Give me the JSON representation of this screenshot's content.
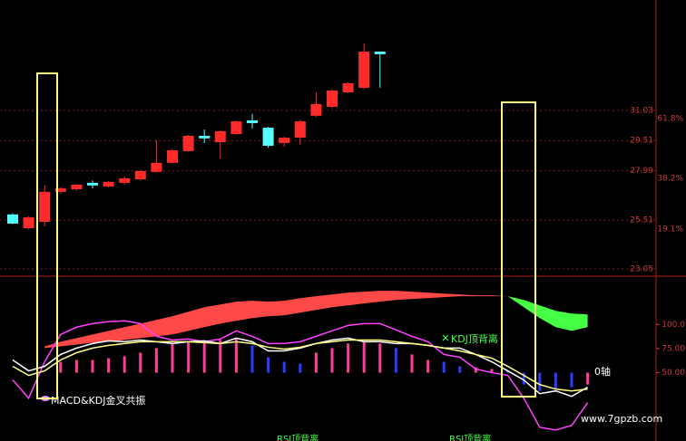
{
  "chart_data": [
    {
      "type": "candlestick",
      "open": [
        25.79,
        25.1,
        25.42,
        26.93,
        27.06,
        27.38,
        27.2,
        27.38,
        27.56,
        27.93,
        28.39,
        28.98,
        29.75,
        29.43,
        29.84,
        30.53,
        30.16,
        29.39,
        29.66,
        30.76,
        31.21,
        31.94,
        32.17,
        33.99
      ],
      "high": [
        25.85,
        25.7,
        27.25,
        27.15,
        27.33,
        27.5,
        27.47,
        27.7,
        28.02,
        29.53,
        29.1,
        29.8,
        30.07,
        30.03,
        30.52,
        30.85,
        30.2,
        29.7,
        30.55,
        31.94,
        32.1,
        32.45,
        34.4,
        34.0
      ],
      "low": [
        25.3,
        25.05,
        25.19,
        26.85,
        27.0,
        27.1,
        27.15,
        27.3,
        27.5,
        27.9,
        28.35,
        28.95,
        29.39,
        28.61,
        29.8,
        30.12,
        29.15,
        29.2,
        29.3,
        30.7,
        31.15,
        31.9,
        32.1,
        32.17
      ],
      "close": [
        25.33,
        25.65,
        26.93,
        27.11,
        27.29,
        27.25,
        27.43,
        27.61,
        27.97,
        28.39,
        29.02,
        29.75,
        29.62,
        29.98,
        30.48,
        30.39,
        29.25,
        29.66,
        30.48,
        31.35,
        32.03,
        32.4,
        33.99,
        33.86
      ],
      "up_color": "#ff2a2a",
      "down_color": "#54ffff",
      "ylim": [
        22.68,
        36.59
      ],
      "yticks": [
        31.03,
        29.51,
        27.99,
        25.51,
        23.05
      ],
      "fib_labels": [
        {
          "value": 30.62,
          "label": "61.8%"
        },
        {
          "value": 27.61,
          "label": "38.2%"
        },
        {
          "value": 25.06,
          "label": "19.1%"
        }
      ],
      "axis_color": "#c83c3c",
      "grid": true
    },
    {
      "type": "indicator",
      "ylim": [
        -20.8,
        147.2
      ],
      "yticks": [
        {
          "value": 100,
          "label": "100.0"
        },
        {
          "value": 75,
          "label": "75.00"
        },
        {
          "value": 50,
          "label": "50.00"
        }
      ],
      "lines": [
        {
          "color": "#ff40ff",
          "values": [
            42.5,
            23.6,
            61.3,
            89.6,
            97.2,
            100.9,
            102.8,
            103.8,
            100.9,
            87.7,
            83.9,
            84.9,
            82.1,
            84.9,
            93.4,
            87.7,
            80.2,
            80.2,
            82.1,
            87.7,
            93.4,
            99.0,
            100.9,
            100.9,
            94.3,
            87.7,
            82.1,
            68.9,
            66.0,
            53.8,
            50.0,
            47.2,
            23.6,
            -6.6,
            -9.4,
            -4.7,
            18.9
          ]
        },
        {
          "color": "#ffffff",
          "values": [
            63.2,
            51.9,
            56.6,
            68.9,
            75.5,
            80.2,
            83.0,
            82.1,
            83.9,
            82.1,
            80.2,
            82.1,
            83.0,
            80.2,
            85.8,
            82.1,
            72.6,
            72.6,
            75.5,
            80.2,
            83.9,
            85.8,
            82.1,
            82.1,
            80.2,
            80.2,
            78.3,
            75.5,
            75.5,
            68.9,
            61.3,
            51.9,
            42.5,
            28.3,
            31.1,
            25.5,
            34.9
          ]
        },
        {
          "color": "#ffff80",
          "values": [
            56.6,
            47.2,
            51.9,
            63.2,
            70.7,
            75.5,
            78.3,
            80.2,
            82.1,
            82.1,
            82.1,
            82.1,
            81.1,
            80.2,
            82.1,
            80.2,
            76.4,
            74.5,
            76.4,
            80.2,
            82.1,
            83.9,
            83.9,
            83.9,
            82.1,
            80.2,
            78.3,
            75.5,
            72.6,
            68.9,
            65.1,
            56.6,
            47.2,
            37.7,
            33.0,
            31.1,
            33.0
          ]
        }
      ],
      "histogram": {
        "values": [
          null,
          null,
          null,
          61.3,
          63.2,
          63.2,
          65.1,
          67.0,
          70.7,
          75.5,
          80.2,
          82.1,
          82.1,
          83.9,
          85.8,
          78.3,
          66.0,
          61.3,
          59.4,
          70.7,
          75.5,
          80.2,
          82.1,
          80.2,
          75.5,
          68.9,
          63.2,
          61.3,
          56.6,
          55.7,
          53.8,
          51.9,
          37.7,
          31.1,
          33.0,
          34.9,
          37.7
        ],
        "colors": [
          null,
          null,
          null,
          "#ff3c9a",
          "#ff3c9a",
          "#ff3c9a",
          "#ff3c9a",
          "#ff3c9a",
          "#ff3c9a",
          "#ff3c9a",
          "#ff3c9a",
          "#ff3c9a",
          "#ff3c9a",
          "#ff3c9a",
          "#ff3c9a",
          "#2a3cff",
          "#2a3cff",
          "#2a3cff",
          "#2a3cff",
          "#ff3c9a",
          "#ff3c9a",
          "#ff3c9a",
          "#ff3c9a",
          "#ff3c9a",
          "#2a3cff",
          "#ff3c9a",
          "#ff3c9a",
          "#2a3cff",
          "#2a3cff",
          "#ff3c9a",
          "#ff3c9a",
          "#2a3cff",
          "#2a3cff",
          "#2a3cff",
          "#2a3cff",
          "#2a3cff",
          "#ff3c9a"
        ]
      },
      "bands": [
        {
          "color": "#ff4848",
          "upper": [
            null,
            null,
            77.3,
            82.1,
            85.8,
            89.6,
            93.4,
            97.2,
            100.9,
            104.7,
            108.5,
            113.2,
            117.9,
            120.7,
            123.6,
            124.5,
            123.6,
            124.5,
            127.3,
            129.2,
            131.1,
            133.0,
            133.9,
            134.9,
            134.9,
            133.9,
            133.0,
            132.0,
            131.1,
            130.2,
            130.2,
            129.2,
            null,
            null,
            null,
            null,
            null
          ],
          "lower": [
            null,
            null,
            75.5,
            77.3,
            79.2,
            81.1,
            82.1,
            83.9,
            85.8,
            87.7,
            89.6,
            93.4,
            97.2,
            100.9,
            103.8,
            106.6,
            108.5,
            109.4,
            112.2,
            115.1,
            117.9,
            119.8,
            121.7,
            123.6,
            125.4,
            126.4,
            127.3,
            128.3,
            129.2,
            129.2,
            129.2,
            129.2,
            null,
            null,
            null,
            null,
            null
          ]
        },
        {
          "color": "#44ff44",
          "upper": [
            null,
            null,
            null,
            null,
            null,
            null,
            null,
            null,
            null,
            null,
            null,
            null,
            null,
            null,
            null,
            null,
            null,
            null,
            null,
            null,
            null,
            null,
            null,
            null,
            null,
            null,
            null,
            null,
            null,
            null,
            null,
            129.2,
            125.4,
            119.8,
            114.1,
            111.3,
            110.4
          ],
          "lower": [
            null,
            null,
            null,
            null,
            null,
            null,
            null,
            null,
            null,
            null,
            null,
            null,
            null,
            null,
            null,
            null,
            null,
            null,
            null,
            null,
            null,
            null,
            null,
            null,
            null,
            null,
            null,
            null,
            null,
            null,
            null,
            129.2,
            117.9,
            106.6,
            97.2,
            93.4,
            97.2
          ]
        }
      ],
      "annotations": [
        "MACD&KDJ金叉共振",
        "KDJ顶背离",
        "RSI顶背离",
        "RSI顶背离",
        "0轴",
        "www.7gpzb.com"
      ],
      "axis_color": "#c83c3c"
    }
  ]
}
